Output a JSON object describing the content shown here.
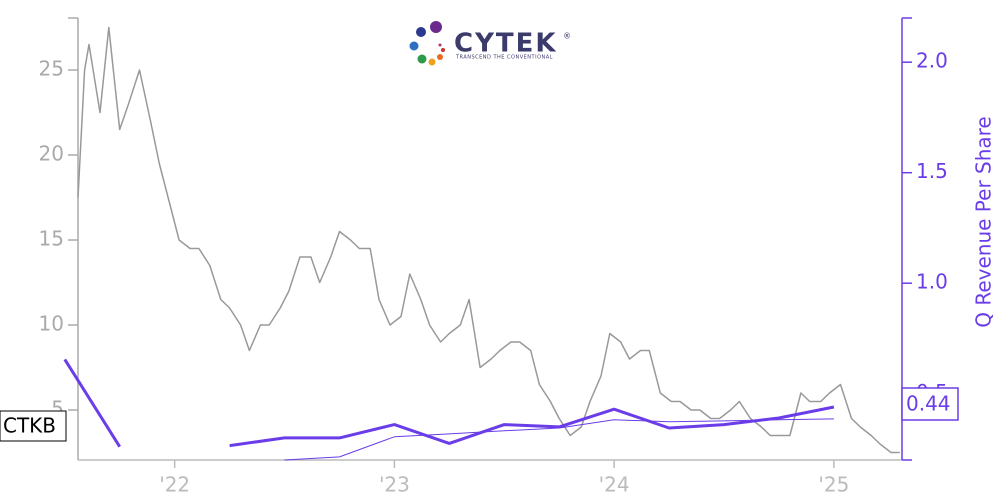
{
  "chart_data": {
    "type": "line",
    "logo": {
      "text": "CYTEK",
      "mark": "®",
      "tagline": "TRANSCEND THE CONVENTIONAL"
    },
    "y2label": "Q Revenue Per Share",
    "xlim": [
      2021.56,
      2025.31
    ],
    "xticks": [
      {
        "value": 2022,
        "label": "'22"
      },
      {
        "value": 2023,
        "label": "'23"
      },
      {
        "value": 2024,
        "label": "'24"
      },
      {
        "value": 2025,
        "label": "'25"
      }
    ],
    "ylim": [
      2.06,
      28.06
    ],
    "yticks": [
      5,
      10,
      15,
      20,
      25
    ],
    "y2lim": [
      0.2,
      2.2
    ],
    "y2ticks": [
      0.5,
      {
        "value": 1,
        "label": "1.0"
      },
      1.5,
      {
        "value": 2,
        "label": "2.0"
      }
    ],
    "series": [
      {
        "name": "CTKB",
        "color": "#999999",
        "x": [
          2021.56,
          2021.57,
          2021.59,
          2021.61,
          2021.66,
          2021.7,
          2021.75,
          2021.79,
          2021.84,
          2021.89,
          2021.93,
          2021.98,
          2022.02,
          2022.07,
          2022.11,
          2022.16,
          2022.21,
          2022.25,
          2022.3,
          2022.34,
          2022.39,
          2022.43,
          2022.48,
          2022.52,
          2022.57,
          2022.62,
          2022.66,
          2022.71,
          2022.75,
          2022.8,
          2022.84,
          2022.89,
          2022.93,
          2022.98,
          2023.03,
          2023.07,
          2023.12,
          2023.16,
          2023.21,
          2023.25,
          2023.3,
          2023.34,
          2023.39,
          2023.44,
          2023.48,
          2023.53,
          2023.57,
          2023.62,
          2023.66,
          2023.71,
          2023.75,
          2023.8,
          2023.85,
          2023.89,
          2023.94,
          2023.98,
          2024.03,
          2024.07,
          2024.12,
          2024.16,
          2024.21,
          2024.26,
          2024.3,
          2024.35,
          2024.39,
          2024.44,
          2024.48,
          2024.53,
          2024.57,
          2024.62,
          2024.67,
          2024.71,
          2024.76,
          2024.8,
          2024.85,
          2024.89,
          2024.94,
          2024.98,
          2025.03,
          2025.08,
          2025.12,
          2025.17,
          2025.21,
          2025.26,
          2025.3
        ],
        "values": [
          17.5,
          20,
          25,
          26.5,
          22.5,
          27.5,
          21.5,
          23,
          25,
          22,
          19.5,
          17,
          15,
          14.5,
          14.5,
          13.5,
          11.5,
          11,
          10,
          8.5,
          10,
          10,
          11,
          12,
          14,
          14,
          12.5,
          14,
          15.5,
          15,
          14.5,
          14.5,
          11.5,
          10,
          10.5,
          13,
          11.5,
          10,
          9,
          9.5,
          10,
          11.5,
          7.5,
          8,
          8.5,
          9,
          9,
          8.5,
          6.5,
          5.5,
          4.5,
          3.5,
          4,
          5.5,
          7,
          9.5,
          9,
          8,
          8.5,
          8.5,
          6,
          5.5,
          5.5,
          5,
          5,
          4.5,
          4.5,
          5,
          5.5,
          4.5,
          4,
          3.5,
          3.5,
          3.5,
          6,
          5.5,
          5.5,
          6,
          6.5,
          4.5,
          4,
          3.5,
          3,
          2.5,
          2.5
        ]
      },
      {
        "color": "#6a3de8",
        "axis": "y2",
        "x": [
          2021.5,
          2021.75,
          2022.0,
          2022.25,
          2022.5,
          2022.75,
          2023.0,
          2023.25,
          2023.5,
          2023.75,
          2024.0,
          2024.25,
          2024.5,
          2024.75,
          2025.0
        ],
        "values": [
          0.655,
          0.26,
          null,
          0.265,
          0.3,
          0.3,
          0.36,
          0.275,
          0.36,
          0.35,
          0.43,
          0.345,
          0.36,
          0.39,
          0.44
        ]
      },
      {
        "color": "#6a3de8",
        "axis": "y2",
        "x": [
          2022.5,
          2022.75,
          2023.0,
          2023.25,
          2023.5,
          2023.75,
          2024.0,
          2024.25,
          2024.5,
          2024.75,
          2025.0
        ],
        "values": [
          0.2,
          0.214,
          0.305,
          0.318,
          0.332,
          0.345,
          0.382,
          0.373,
          0.377,
          0.382,
          0.386
        ]
      }
    ]
  }
}
